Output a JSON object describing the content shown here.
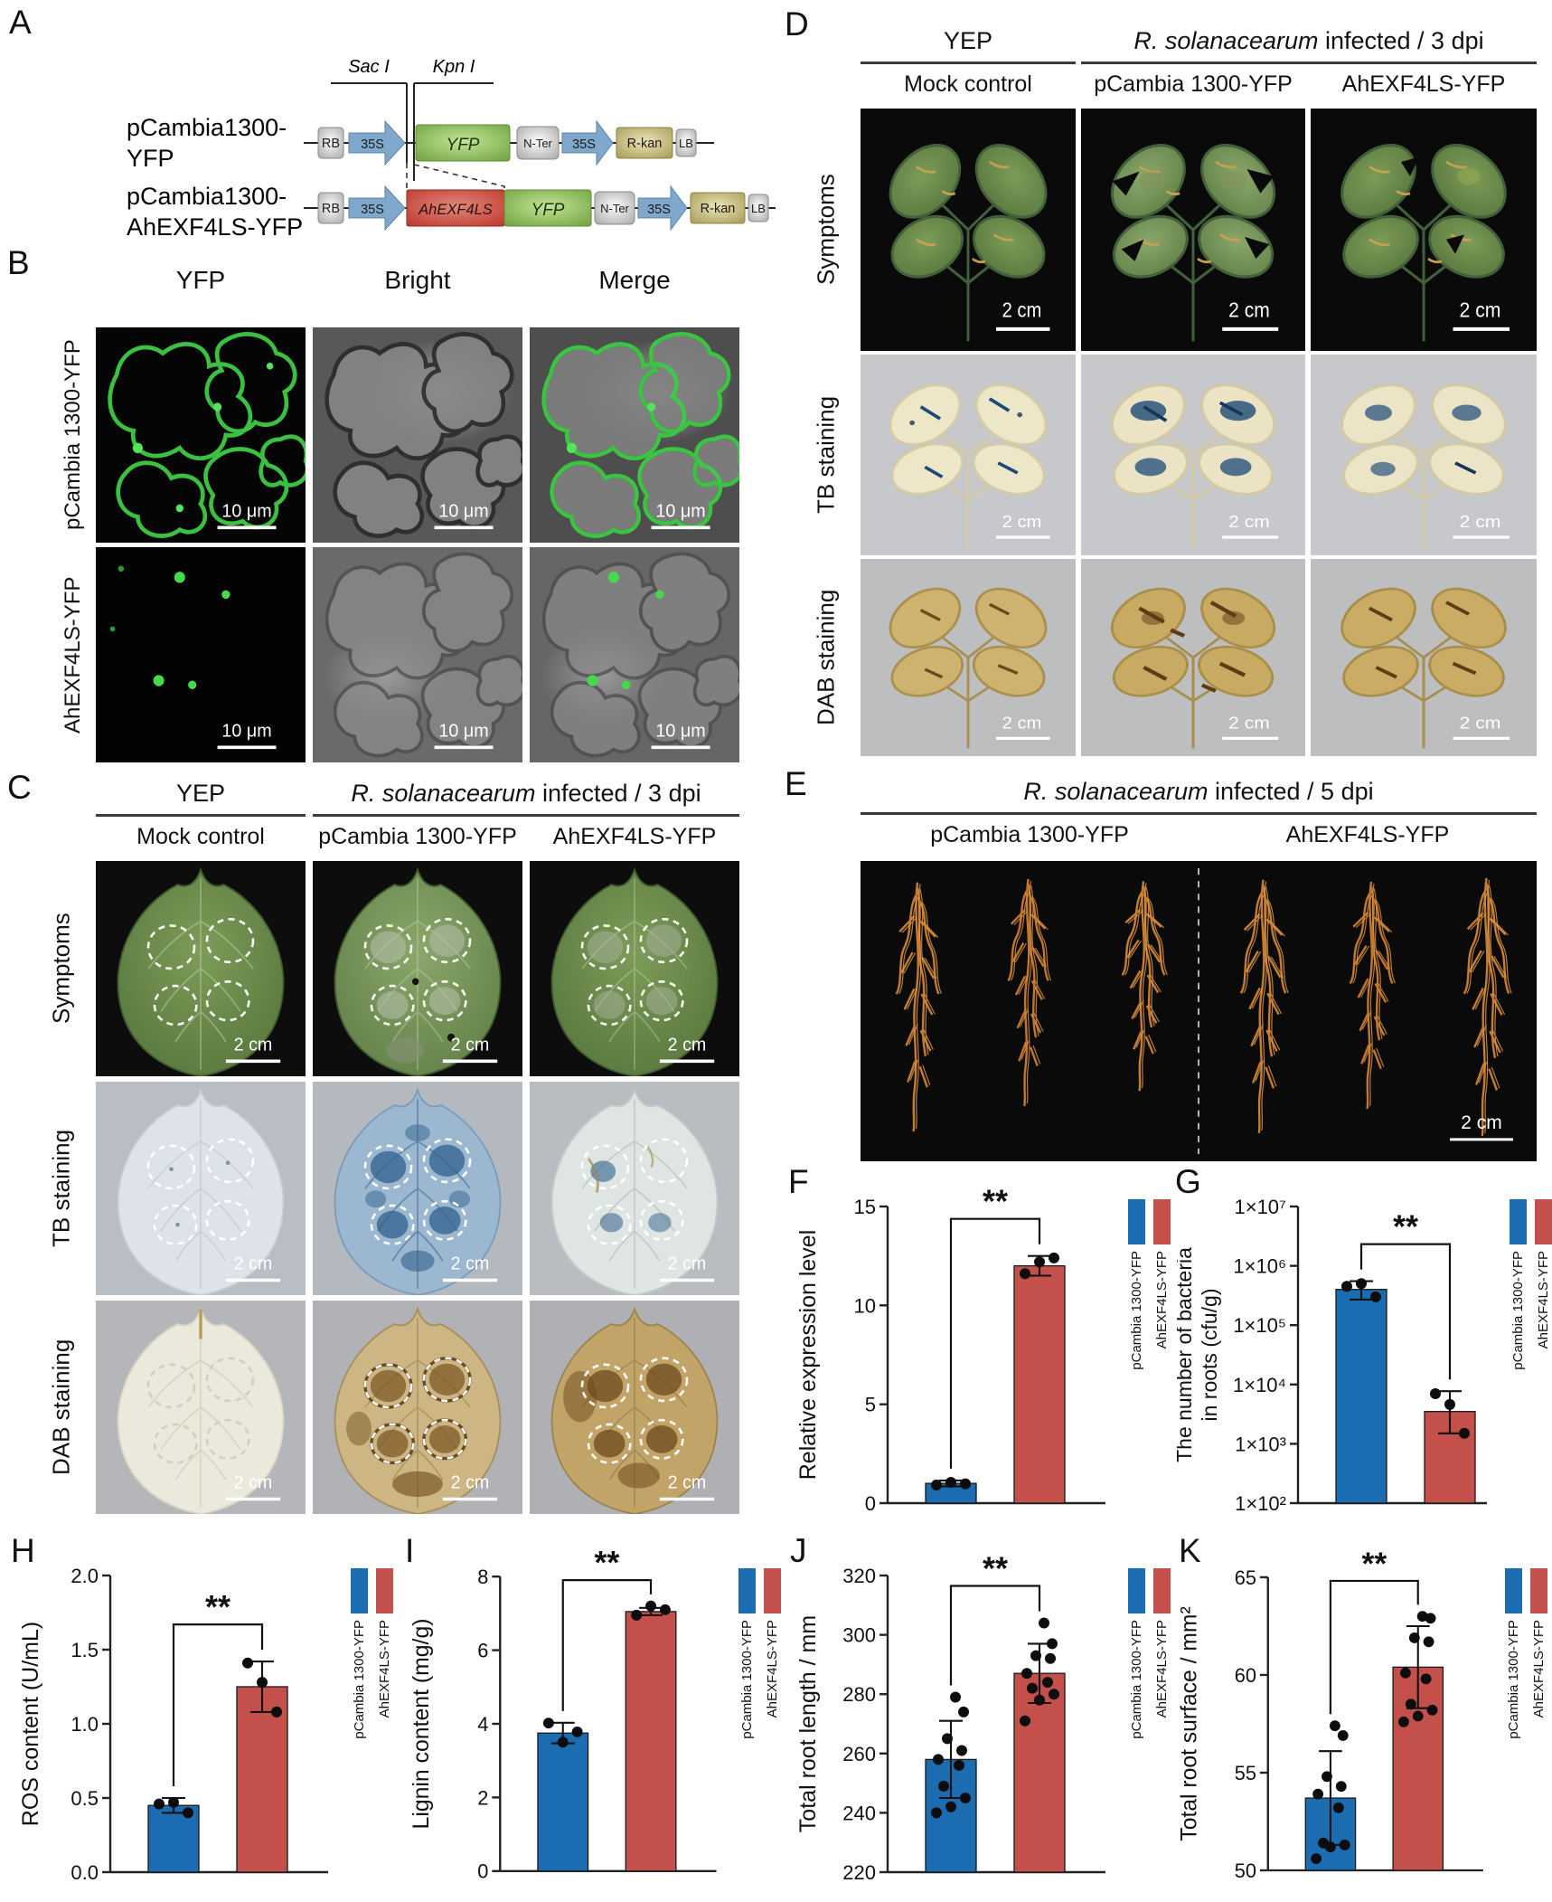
{
  "colors": {
    "blue": "#1b6cb0",
    "red": "#c4504c"
  },
  "panelA": {
    "label": "A",
    "construct1_name_line1": "pCambia1300-",
    "construct1_name_line2": "YFP",
    "construct2_name_line1": "pCambia1300-",
    "construct2_name_line2": "AhEXF4LS-YFP",
    "site1": "Sac I",
    "site2": "Kpn I",
    "rb": "RB",
    "promoter": "35S",
    "yfp": "YFP",
    "nter": "N-Ter",
    "rkan": "R-kan",
    "lb": "LB",
    "insert": "AhEXF4LS"
  },
  "panelB": {
    "label": "B",
    "col_headers": [
      "YFP",
      "Bright",
      "Merge"
    ],
    "row_labels": [
      "pCambia 1300-YFP",
      "AhEXF4LS-YFP"
    ],
    "scale_bar": "10 μm"
  },
  "panelC": {
    "label": "C",
    "group1": "YEP",
    "group2_italic": "R. solanacearum",
    "group2_rest": " infected / 3 dpi",
    "col_headers": [
      "Mock control",
      "pCambia 1300-YFP",
      "AhEXF4LS-YFP"
    ],
    "row_labels": [
      "Symptoms",
      "TB staining",
      "DAB staining"
    ],
    "scale_bar": "2 cm"
  },
  "panelD": {
    "label": "D",
    "group1": "YEP",
    "group2_italic": "R. solanacearum",
    "group2_rest": " infected / 3 dpi",
    "col_headers": [
      "Mock control",
      "pCambia 1300-YFP",
      "AhEXF4LS-YFP"
    ],
    "row_labels": [
      "Symptoms",
      "TB staining",
      "DAB staining"
    ],
    "scale_bar": "2 cm"
  },
  "panelE": {
    "label": "E",
    "title_italic": "R. solanacearum",
    "title_rest": " infected / 5 dpi",
    "col_headers": [
      "pCambia 1300-YFP",
      "AhEXF4LS-YFP"
    ],
    "scale_bar": "2 cm"
  },
  "legend": {
    "labels": [
      "pCambia 1300-YFP",
      "AhEXF4LS-YFP"
    ]
  },
  "chart_data": [
    {
      "id": "F",
      "type": "bar",
      "log": false,
      "ylabel": "Relative expression level",
      "categories": [
        "pCambia 1300-YFP",
        "AhEXF4LS-YFP"
      ],
      "values": [
        1.0,
        12.0
      ],
      "errors": [
        0.15,
        0.5
      ],
      "points": [
        [
          0.92,
          1.05,
          0.98
        ],
        [
          11.6,
          12.2,
          12.4
        ]
      ],
      "ylim": [
        0,
        15
      ],
      "yticks": [
        0,
        5,
        10,
        15
      ],
      "ytick_labels": [
        "0",
        "5",
        "10",
        "15"
      ],
      "significance": "**"
    },
    {
      "id": "G",
      "type": "bar",
      "log": true,
      "ylabel": "The number of bacteria\nin roots (cfu/g)",
      "categories": [
        "pCambia 1300-YFP",
        "AhEXF4LS-YFP"
      ],
      "values": [
        400000,
        3500
      ],
      "errors": [
        150000,
        2000
      ],
      "errors_up": [
        150000,
        4200
      ],
      "errors_dn": [
        130000,
        2000
      ],
      "points": [
        [
          450000,
          500000,
          300000
        ],
        [
          7000,
          4600,
          1500
        ]
      ],
      "ylim": [
        100,
        10000000
      ],
      "yticks": [
        100,
        1000,
        10000,
        100000,
        1000000,
        10000000
      ],
      "ytick_labels": [
        "1×10²",
        "1×10³",
        "1×10⁴",
        "1×10⁵",
        "1×10⁶",
        "1×10⁷"
      ],
      "significance": "**"
    },
    {
      "id": "H",
      "type": "bar",
      "log": false,
      "ylabel": "ROS content (U/mL)",
      "categories": [
        "pCambia 1300-YFP",
        "AhEXF4LS-YFP"
      ],
      "values": [
        0.45,
        1.25
      ],
      "errors": [
        0.05,
        0.17
      ],
      "points": [
        [
          0.46,
          0.47,
          0.4
        ],
        [
          1.41,
          1.28,
          1.08
        ]
      ],
      "ylim": [
        0,
        2
      ],
      "yticks": [
        0,
        0.5,
        1,
        1.5,
        2
      ],
      "ytick_labels": [
        "0.0",
        "0.5",
        "1.0",
        "1.5",
        "2.0"
      ],
      "significance": "**"
    },
    {
      "id": "I",
      "type": "bar",
      "log": false,
      "ylabel": "Lignin content (mg/g)",
      "categories": [
        "pCambia 1300-YFP",
        "AhEXF4LS-YFP"
      ],
      "values": [
        3.75,
        7.05
      ],
      "errors": [
        0.28,
        0.1
      ],
      "points": [
        [
          4.02,
          3.5,
          3.78
        ],
        [
          6.95,
          7.2,
          7.1
        ]
      ],
      "ylim": [
        0,
        8
      ],
      "yticks": [
        0,
        2,
        4,
        6,
        8
      ],
      "ytick_labels": [
        "0",
        "2",
        "4",
        "6",
        "8"
      ],
      "significance": "**"
    },
    {
      "id": "J",
      "type": "bar",
      "log": false,
      "ylabel": "Total root length / mm",
      "categories": [
        "pCambia 1300-YFP",
        "AhEXF4LS-YFP"
      ],
      "values": [
        258,
        287
      ],
      "errors": [
        13,
        10
      ],
      "points": [
        [
          240,
          242,
          245,
          249,
          256,
          258,
          261,
          265,
          274,
          279
        ],
        [
          271,
          278,
          280,
          282,
          284,
          287,
          292,
          293,
          297,
          304
        ]
      ],
      "ylim": [
        220,
        320
      ],
      "yticks": [
        220,
        240,
        260,
        280,
        300,
        320
      ],
      "ytick_labels": [
        "220",
        "240",
        "260",
        "280",
        "300",
        "320"
      ],
      "significance": "**"
    },
    {
      "id": "K",
      "type": "bar",
      "log": false,
      "ylabel": "Total root surface / mm²",
      "categories": [
        "pCambia 1300-YFP",
        "AhEXF4LS-YFP"
      ],
      "values": [
        53.7,
        60.4
      ],
      "errors": [
        2.4,
        2.1
      ],
      "points": [
        [
          50.6,
          51.2,
          51.3,
          51.4,
          53.2,
          53.9,
          54.3,
          54.8,
          56.9,
          57.4
        ],
        [
          57.6,
          57.9,
          58.2,
          58.5,
          59.8,
          60.1,
          61.7,
          61.9,
          62.9,
          63.0
        ]
      ],
      "ylim": [
        50,
        65
      ],
      "yticks": [
        50,
        55,
        60,
        65
      ],
      "ytick_labels": [
        "50",
        "55",
        "60",
        "65"
      ],
      "significance": "**"
    }
  ]
}
